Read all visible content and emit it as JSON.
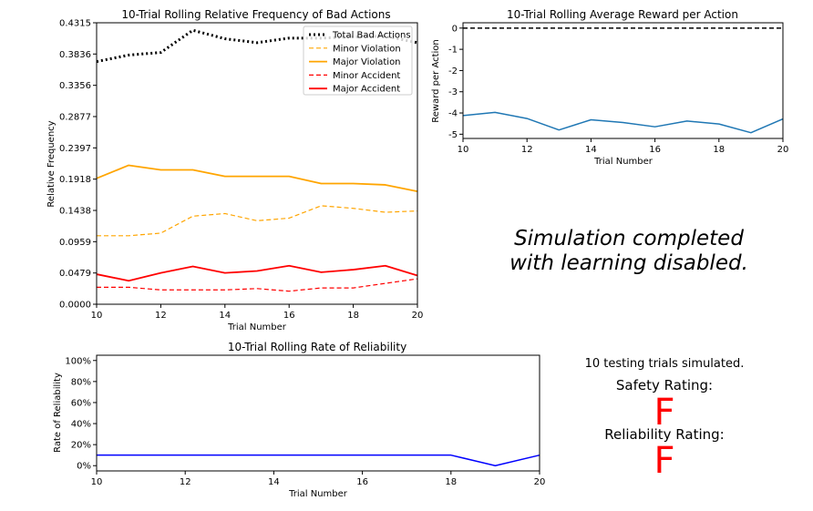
{
  "chart_data": [
    {
      "type": "line",
      "title": "10-Trial Rolling Relative Frequency of Bad Actions",
      "xlabel": "Trial Number",
      "ylabel": "Relative Frequency",
      "xlim": [
        10,
        20
      ],
      "ylim": [
        0,
        0.4315
      ],
      "xticks": [
        "10",
        "12",
        "14",
        "16",
        "18",
        "20"
      ],
      "yticks": [
        "0.0000",
        "0.0479",
        "0.0959",
        "0.1438",
        "0.1918",
        "0.2397",
        "0.2877",
        "0.3356",
        "0.3836",
        "0.4315"
      ],
      "legend_position": "upper right",
      "x": [
        10,
        11,
        12,
        13,
        14,
        15,
        16,
        17,
        18,
        19,
        20
      ],
      "series": [
        {
          "name": "Total Bad Actions",
          "color": "#000000",
          "style": "dotted",
          "values": [
            0.372,
            0.382,
            0.386,
            0.42,
            0.407,
            0.401,
            0.408,
            0.408,
            0.41,
            0.411,
            0.401
          ]
        },
        {
          "name": "Minor Violation",
          "color": "#ffa500",
          "style": "dashed",
          "values": [
            0.105,
            0.105,
            0.109,
            0.135,
            0.139,
            0.128,
            0.132,
            0.151,
            0.147,
            0.141,
            0.143
          ]
        },
        {
          "name": "Major Violation",
          "color": "#ffa500",
          "style": "solid",
          "values": [
            0.193,
            0.213,
            0.206,
            0.206,
            0.196,
            0.196,
            0.196,
            0.185,
            0.185,
            0.183,
            0.173
          ]
        },
        {
          "name": "Minor Accident",
          "color": "#ff0000",
          "style": "dashed",
          "values": [
            0.026,
            0.026,
            0.022,
            0.022,
            0.022,
            0.024,
            0.02,
            0.025,
            0.025,
            0.032,
            0.039
          ]
        },
        {
          "name": "Major Accident",
          "color": "#ff0000",
          "style": "solid",
          "values": [
            0.046,
            0.036,
            0.048,
            0.058,
            0.048,
            0.051,
            0.059,
            0.049,
            0.053,
            0.059,
            0.044
          ]
        }
      ]
    },
    {
      "type": "line",
      "title": "10-Trial Rolling Average Reward per Action",
      "xlabel": "Trial Number",
      "ylabel": "Reward per Action",
      "xlim": [
        10,
        20
      ],
      "ylim": [
        -5.2,
        0.25
      ],
      "xticks": [
        "10",
        "12",
        "14",
        "16",
        "18",
        "20"
      ],
      "yticks": [
        "0",
        "-1",
        "-2",
        "-3",
        "-4",
        "-5"
      ],
      "reference_line": {
        "y": 0,
        "color": "#000000",
        "style": "dashed"
      },
      "x": [
        10,
        11,
        12,
        13,
        14,
        15,
        16,
        17,
        18,
        19,
        20
      ],
      "series": [
        {
          "color": "#1f77b4",
          "style": "solid",
          "values": [
            -4.12,
            -3.97,
            -4.26,
            -4.8,
            -4.32,
            -4.45,
            -4.65,
            -4.38,
            -4.52,
            -4.93,
            -4.28
          ]
        }
      ]
    },
    {
      "type": "line",
      "title": "10-Trial Rolling Rate of Reliability",
      "xlabel": "Trial Number",
      "ylabel": "Rate of Reliability",
      "xlim": [
        10,
        20
      ],
      "ylim": [
        -5,
        105
      ],
      "xticks": [
        "10",
        "12",
        "14",
        "16",
        "18",
        "20"
      ],
      "yticks": [
        "0%",
        "20%",
        "40%",
        "60%",
        "80%",
        "100%"
      ],
      "x": [
        10,
        11,
        12,
        13,
        14,
        15,
        16,
        17,
        18,
        19,
        20
      ],
      "series": [
        {
          "color": "#0000ff",
          "style": "solid",
          "values": [
            10,
            10,
            10,
            10,
            10,
            10,
            10,
            10,
            10,
            0,
            10
          ]
        }
      ]
    }
  ],
  "summary": {
    "message_line1": "Simulation completed",
    "message_line2": "with learning disabled.",
    "trials_text": "10 testing trials simulated.",
    "safety_label": "Safety Rating:",
    "safety_grade": "F",
    "reliability_label": "Reliability Rating:",
    "reliability_grade": "F",
    "grade_color": "#ff0000"
  }
}
